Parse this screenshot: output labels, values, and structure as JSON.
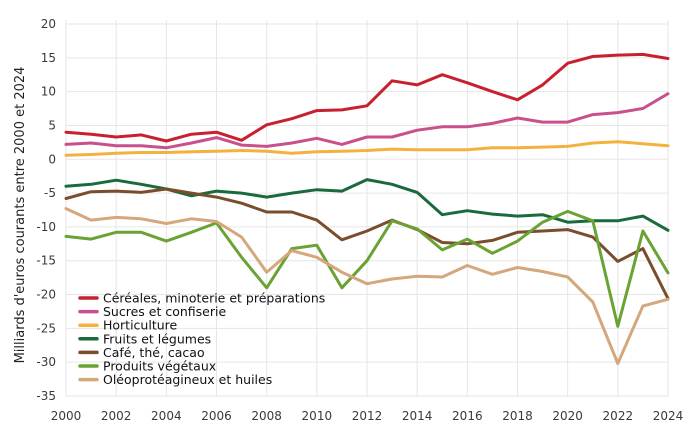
{
  "chart_data": {
    "type": "line",
    "title": "",
    "xlabel": "",
    "ylabel": "Milliards d'euros courants entre 2000 et 2024",
    "xlim": [
      2000,
      2024
    ],
    "ylim": [
      -35,
      20
    ],
    "xticks": [
      2000,
      2002,
      2004,
      2006,
      2008,
      2010,
      2012,
      2014,
      2016,
      2018,
      2020,
      2022,
      2024
    ],
    "yticks": [
      20,
      15,
      10,
      5,
      0,
      -5,
      -10,
      -15,
      -20,
      -25,
      -30,
      -35
    ],
    "grid": true,
    "legend_position": "bottom-left",
    "x": [
      2000,
      2001,
      2002,
      2003,
      2004,
      2005,
      2006,
      2007,
      2008,
      2009,
      2010,
      2011,
      2012,
      2013,
      2014,
      2015,
      2016,
      2017,
      2018,
      2019,
      2020,
      2021,
      2022,
      2023,
      2024
    ],
    "series": [
      {
        "name": "Céréales, minoterie et préparations",
        "color": "#c8202f",
        "values": [
          4.0,
          3.7,
          3.3,
          3.6,
          2.7,
          3.7,
          4.0,
          2.8,
          5.1,
          6.0,
          7.2,
          7.3,
          7.9,
          11.6,
          11.0,
          12.5,
          11.3,
          10.0,
          8.8,
          11.0,
          14.2,
          15.2,
          15.4,
          15.5,
          14.9
        ]
      },
      {
        "name": "Sucres et confiserie",
        "color": "#c8508c",
        "values": [
          2.2,
          2.4,
          2.0,
          2.0,
          1.7,
          2.4,
          3.2,
          2.1,
          1.9,
          2.4,
          3.1,
          2.2,
          3.3,
          3.3,
          4.3,
          4.8,
          4.8,
          5.3,
          6.1,
          5.5,
          5.5,
          6.6,
          6.9,
          7.5,
          9.7
        ]
      },
      {
        "name": "Horticulture",
        "color": "#f5b13e",
        "values": [
          0.6,
          0.7,
          0.9,
          1.0,
          1.0,
          1.1,
          1.2,
          1.3,
          1.2,
          0.9,
          1.1,
          1.2,
          1.3,
          1.5,
          1.4,
          1.4,
          1.4,
          1.7,
          1.7,
          1.8,
          1.9,
          2.4,
          2.6,
          2.3,
          2.0
        ]
      },
      {
        "name": "Fruits et légumes",
        "color": "#1a6a3c",
        "values": [
          -4.0,
          -3.7,
          -3.1,
          -3.7,
          -4.4,
          -5.4,
          -4.7,
          -5.0,
          -5.6,
          -5.0,
          -4.5,
          -4.7,
          -3.0,
          -3.7,
          -4.9,
          -8.2,
          -7.6,
          -8.1,
          -8.4,
          -8.2,
          -9.3,
          -9.1,
          -9.1,
          -8.4,
          -10.5
        ]
      },
      {
        "name": "Café, thé, cacao",
        "color": "#7a4e2d",
        "values": [
          -5.8,
          -4.8,
          -4.7,
          -4.9,
          -4.4,
          -5.0,
          -5.6,
          -6.5,
          -7.8,
          -7.8,
          -9.0,
          -11.9,
          -10.6,
          -9.0,
          -10.4,
          -12.3,
          -12.5,
          -12.0,
          -10.8,
          -10.6,
          -10.4,
          -11.5,
          -15.1,
          -13.2,
          -20.6
        ]
      },
      {
        "name": "Produits végétaux",
        "color": "#6aa233",
        "values": [
          -11.4,
          -11.8,
          -10.8,
          -10.8,
          -12.1,
          -10.8,
          -9.4,
          -14.5,
          -19.0,
          -13.2,
          -12.7,
          -19.0,
          -15.0,
          -9.1,
          -10.3,
          -13.4,
          -11.8,
          -13.9,
          -12.1,
          -9.3,
          -7.7,
          -9.1,
          -24.7,
          -10.6,
          -16.8
        ]
      },
      {
        "name": "Oléoprotéagineux et huiles",
        "color": "#d4a77c",
        "values": [
          -7.3,
          -9.0,
          -8.6,
          -8.8,
          -9.5,
          -8.8,
          -9.2,
          -11.5,
          -16.7,
          -13.5,
          -14.5,
          -16.7,
          -18.4,
          -17.7,
          -17.3,
          -17.4,
          -15.7,
          -17.0,
          -16.0,
          -16.6,
          -17.4,
          -21.1,
          -30.2,
          -21.7,
          -20.7
        ]
      }
    ]
  }
}
